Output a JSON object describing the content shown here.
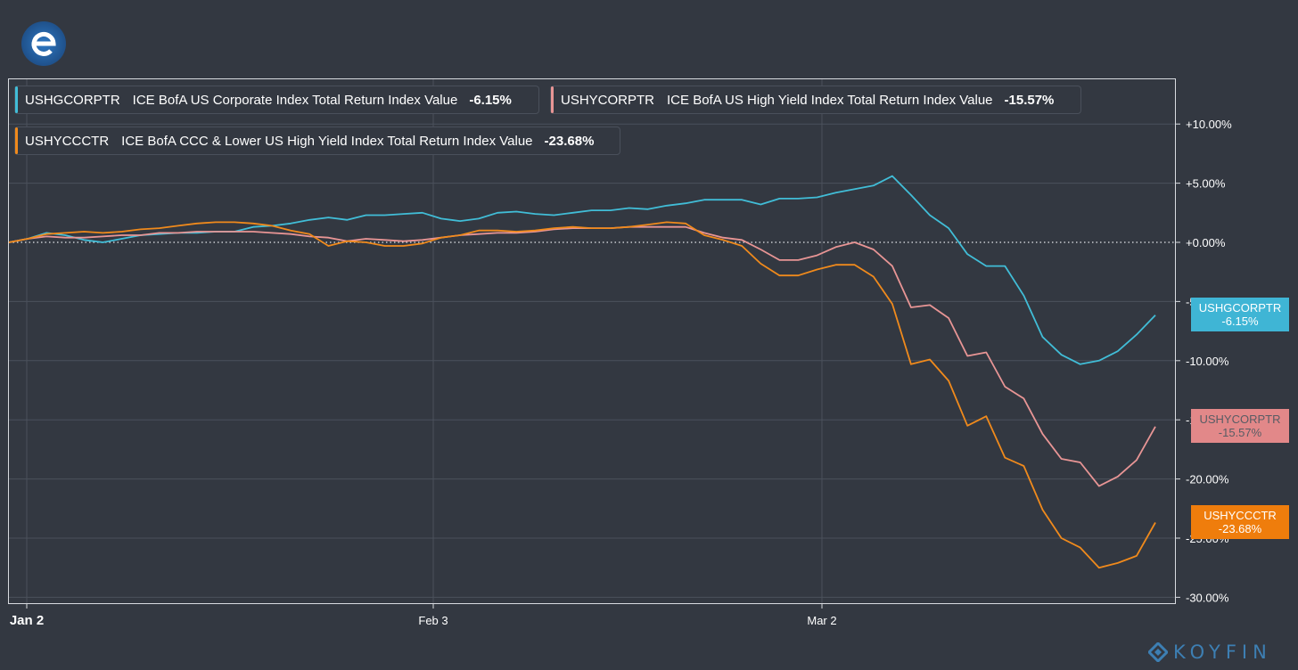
{
  "brand": "KOYFIN",
  "legend": [
    {
      "code": "USHGCORPTR",
      "description": "ICE BofA US Corporate Index Total Return Index Value",
      "change": "-6.15%",
      "color": "#41bdd7"
    },
    {
      "code": "USHYCORPTR",
      "description": "ICE BofA US High Yield Index Total Return Index Value",
      "change": "-15.57%",
      "color": "#e89595"
    },
    {
      "code": "USHYCCCTR",
      "description": "ICE BofA CCC & Lower US High Yield Index Total Return Index Value",
      "change": "-23.68%",
      "color": "#f08a1c"
    }
  ],
  "end_labels": [
    {
      "code": "USHGCORPTR",
      "value": "-6.15%",
      "bg": "#3fb5d5",
      "fg": "#ffffff"
    },
    {
      "code": "USHYCORPTR",
      "value": "-15.57%",
      "bg": "#e28889",
      "fg": "#585c64"
    },
    {
      "code": "USHYCCCTR",
      "value": "-23.68%",
      "bg": "#ef7d0c",
      "fg": "#ffffff"
    }
  ],
  "chart_data": {
    "type": "line",
    "x_tick_labels": [
      "Jan 2",
      "Feb 3",
      "Mar 2"
    ],
    "y_tick_labels": [
      "+10.00%",
      "+5.00%",
      "+0.00%",
      "-5.00%",
      "-10.00%",
      "-15.00%",
      "-20.00%",
      "-25.00%",
      "-30.00%"
    ],
    "y_ticks": [
      10,
      5,
      0,
      -5,
      -10,
      -15,
      -20,
      -25,
      -30
    ],
    "ylim": [
      -30.5,
      13
    ],
    "x_range_trading_days": [
      0,
      60
    ],
    "x_tick_positions_trading_days": [
      1,
      22,
      42
    ],
    "grid": true,
    "zero_line": "dotted",
    "series": [
      {
        "name": "USHGCORPTR",
        "color": "#41bdd7",
        "values": [
          0,
          0.3,
          0.8,
          0.6,
          0.2,
          0,
          0.3,
          0.6,
          0.7,
          0.8,
          0.8,
          0.9,
          0.9,
          1.3,
          1.4,
          1.6,
          1.9,
          2.1,
          1.9,
          2.3,
          2.3,
          2.4,
          2.5,
          2.0,
          1.8,
          2.0,
          2.5,
          2.6,
          2.4,
          2.3,
          2.5,
          2.7,
          2.7,
          2.9,
          2.8,
          3.1,
          3.3,
          3.6,
          3.6,
          3.6,
          3.2,
          3.7,
          3.7,
          3.8,
          4.2,
          4.5,
          4.8,
          5.6,
          4.0,
          2.3,
          1.2,
          -1.0,
          -2.0,
          -2.0,
          -4.5,
          -8.0,
          -9.5,
          -10.3,
          -10.0,
          -9.2,
          -7.8,
          -6.15
        ]
      },
      {
        "name": "USHYCORPTR",
        "color": "#e89595",
        "values": [
          0,
          0.3,
          0.5,
          0.4,
          0.4,
          0.5,
          0.6,
          0.6,
          0.8,
          0.8,
          0.9,
          0.9,
          0.9,
          0.9,
          0.8,
          0.7,
          0.5,
          0.4,
          0.1,
          0.3,
          0.2,
          0.1,
          0.2,
          0.4,
          0.6,
          0.7,
          0.8,
          0.8,
          0.9,
          1.1,
          1.2,
          1.2,
          1.2,
          1.3,
          1.3,
          1.3,
          1.3,
          0.8,
          0.4,
          0.2,
          -0.6,
          -1.5,
          -1.5,
          -1.1,
          -0.4,
          0.0,
          -0.6,
          -2.0,
          -5.5,
          -5.3,
          -6.4,
          -9.6,
          -9.3,
          -12.2,
          -13.2,
          -16.2,
          -18.3,
          -18.6,
          -20.6,
          -19.8,
          -18.4,
          -15.57
        ]
      },
      {
        "name": "USHYCCCTR",
        "color": "#f08a1c",
        "values": [
          0,
          0.3,
          0.7,
          0.8,
          0.9,
          0.8,
          0.9,
          1.1,
          1.2,
          1.4,
          1.6,
          1.7,
          1.7,
          1.6,
          1.4,
          1.0,
          0.7,
          -0.3,
          0.1,
          0.0,
          -0.3,
          -0.3,
          -0.1,
          0.4,
          0.6,
          1.0,
          1.0,
          0.9,
          1.0,
          1.2,
          1.3,
          1.2,
          1.2,
          1.3,
          1.5,
          1.7,
          1.6,
          0.6,
          0.2,
          -0.3,
          -1.8,
          -2.8,
          -2.8,
          -2.3,
          -1.9,
          -1.9,
          -2.9,
          -5.2,
          -10.3,
          -9.9,
          -11.7,
          -15.5,
          -14.7,
          -18.2,
          -18.9,
          -22.6,
          -25.0,
          -25.8,
          -27.5,
          -27.1,
          -26.5,
          -23.68
        ]
      }
    ]
  }
}
